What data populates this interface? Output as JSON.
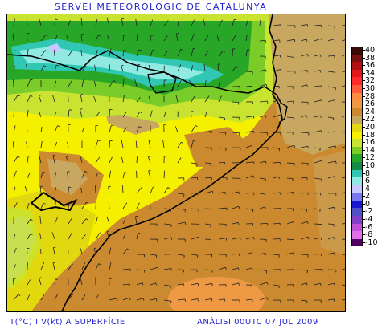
{
  "header": {
    "title": "SERVEI METEOROLÒGIC DE CATALUNYA"
  },
  "footer": {
    "variable": "T(°C) I V(kt) A SUPERFÍCIE",
    "analysis": "ANÀLISI 00UTC 07 JUL 2009"
  },
  "legend": {
    "entries": [
      {
        "label": "40",
        "color": "#3a0a08"
      },
      {
        "label": "38",
        "color": "#7a1010"
      },
      {
        "label": "36",
        "color": "#b01010"
      },
      {
        "label": "34",
        "color": "#e01818"
      },
      {
        "label": "32",
        "color": "#ff2a2a"
      },
      {
        "label": "30",
        "color": "#ff5a3a"
      },
      {
        "label": "28",
        "color": "#ff8a40"
      },
      {
        "label": "26",
        "color": "#ee9a44"
      },
      {
        "label": "24",
        "color": "#cc8a30"
      },
      {
        "label": "22",
        "color": "#c8a860"
      },
      {
        "label": "20",
        "color": "#e2d810"
      },
      {
        "label": "18",
        "color": "#f4f000"
      },
      {
        "label": "16",
        "color": "#c8e430"
      },
      {
        "label": "14",
        "color": "#7acc28"
      },
      {
        "label": "12",
        "color": "#28a628"
      },
      {
        "label": "10",
        "color": "#188a48"
      },
      {
        "label": "8",
        "color": "#30c8b4"
      },
      {
        "label": "6",
        "color": "#90eae2"
      },
      {
        "label": "4",
        "color": "#c8c8ff"
      },
      {
        "label": "2",
        "color": "#7878f0"
      },
      {
        "label": "0",
        "color": "#1818d0"
      },
      {
        "label": "-2",
        "color": "#5050c8"
      },
      {
        "label": "-4",
        "color": "#8040c8"
      },
      {
        "label": "-6",
        "color": "#c050d8"
      },
      {
        "label": "-8",
        "color": "#e070e8"
      },
      {
        "label": "-10",
        "color": "#500060"
      }
    ]
  },
  "map": {
    "colors": {
      "warm_brown": "#cc8a30",
      "tan": "#c8a860",
      "yellow": "#f4f000",
      "olive_yellow": "#e2d810",
      "light_green": "#c8e430",
      "green": "#7acc28",
      "dark_green": "#28a628",
      "teal": "#30c8b4",
      "cyan": "#90eae2",
      "lavender": "#c8c8ff",
      "orange": "#ee9a44"
    }
  }
}
